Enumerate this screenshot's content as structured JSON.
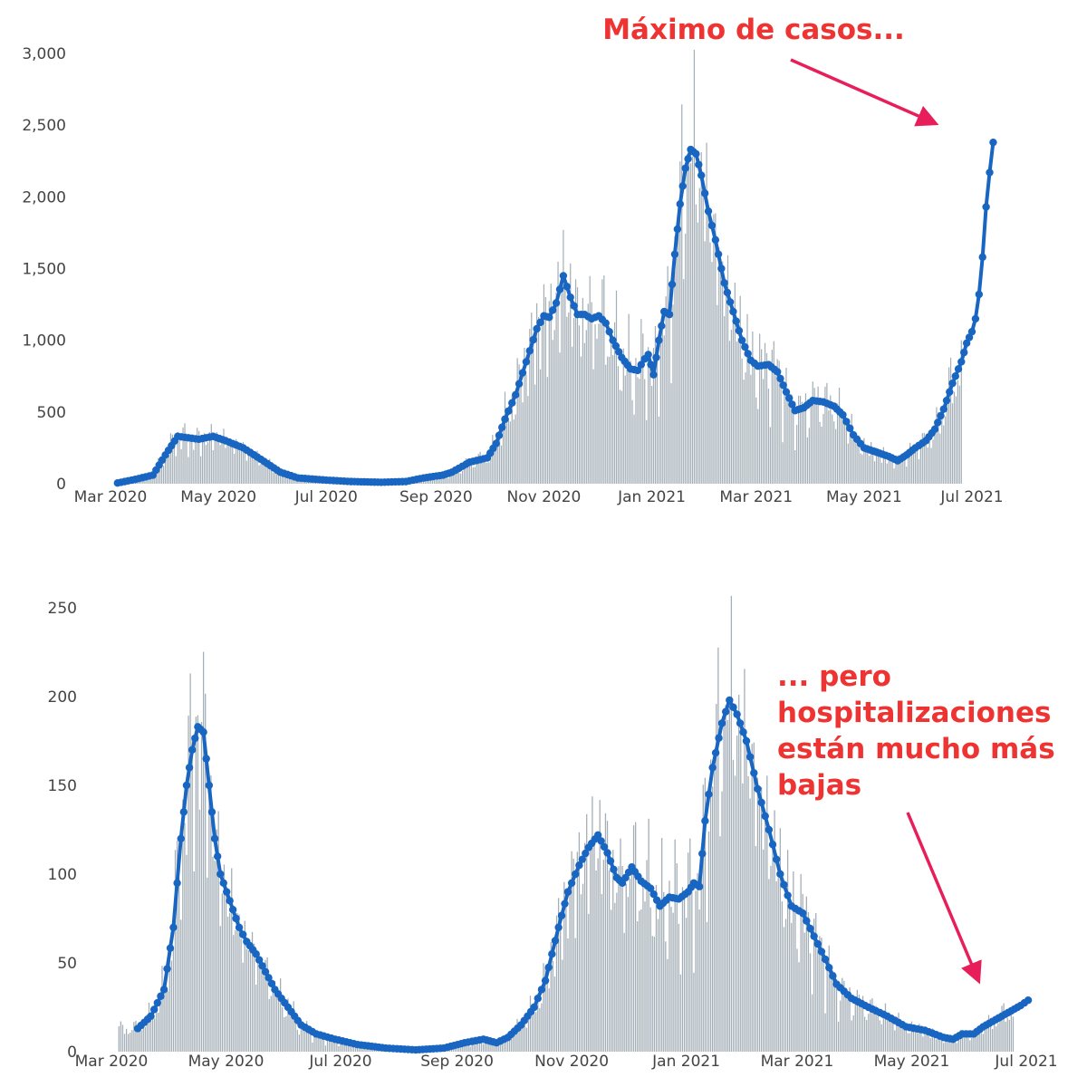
{
  "colors": {
    "bar": "#a3aeb6",
    "line": "#1866c2",
    "annotation": "#ee3333",
    "arrow": "#e81e5a",
    "tick": "#444444"
  },
  "chart_data": [
    {
      "type": "bar",
      "overlay": "line",
      "title": "",
      "xlabel": "",
      "ylabel": "",
      "ylim": [
        0,
        3000
      ],
      "x_range": [
        "2020-03-01",
        "2021-07-01"
      ],
      "x_ticks": [
        {
          "date": "2020-03-01",
          "label": "Mar 2020"
        },
        {
          "date": "2020-05-01",
          "label": "May 2020"
        },
        {
          "date": "2020-07-01",
          "label": "Jul 2020"
        },
        {
          "date": "2020-09-01",
          "label": "Sep 2020"
        },
        {
          "date": "2020-11-01",
          "label": "Nov 2020"
        },
        {
          "date": "2021-01-01",
          "label": "Jan 2021"
        },
        {
          "date": "2021-03-01",
          "label": "Mar 2021"
        },
        {
          "date": "2021-05-01",
          "label": "May 2021"
        },
        {
          "date": "2021-07-01",
          "label": "Jul 2021"
        }
      ],
      "y_ticks": [
        {
          "value": 0,
          "label": "0"
        },
        {
          "value": 500,
          "label": "500"
        },
        {
          "value": 1000,
          "label": "1,000"
        },
        {
          "value": 1500,
          "label": "1,500"
        },
        {
          "value": 2000,
          "label": "2,000"
        },
        {
          "value": 2500,
          "label": "2,500"
        },
        {
          "value": 3000,
          "label": "3,000"
        }
      ],
      "grid": false,
      "bar_series_start": "2020-03-05",
      "bar_series_end": "2021-06-25",
      "series": [
        {
          "type": "line",
          "points": [
            [
              "2020-03-05",
              5
            ],
            [
              "2020-03-15",
              30
            ],
            [
              "2020-03-25",
              60
            ],
            [
              "2020-04-01",
              200
            ],
            [
              "2020-04-08",
              330
            ],
            [
              "2020-04-20",
              310
            ],
            [
              "2020-04-28",
              330
            ],
            [
              "2020-05-05",
              300
            ],
            [
              "2020-05-15",
              250
            ],
            [
              "2020-05-25",
              170
            ],
            [
              "2020-06-05",
              80
            ],
            [
              "2020-06-15",
              40
            ],
            [
              "2020-07-01",
              25
            ],
            [
              "2020-07-15",
              15
            ],
            [
              "2020-08-01",
              10
            ],
            [
              "2020-08-15",
              15
            ],
            [
              "2020-08-25",
              40
            ],
            [
              "2020-09-05",
              60
            ],
            [
              "2020-09-10",
              80
            ],
            [
              "2020-09-20",
              150
            ],
            [
              "2020-09-30",
              180
            ],
            [
              "2020-10-05",
              280
            ],
            [
              "2020-10-10",
              450
            ],
            [
              "2020-10-16",
              620
            ],
            [
              "2020-10-22",
              850
            ],
            [
              "2020-10-28",
              1080
            ],
            [
              "2020-11-01",
              1170
            ],
            [
              "2020-11-04",
              1160
            ],
            [
              "2020-11-08",
              1260
            ],
            [
              "2020-11-12",
              1450
            ],
            [
              "2020-11-16",
              1300
            ],
            [
              "2020-11-20",
              1180
            ],
            [
              "2020-11-24",
              1180
            ],
            [
              "2020-11-28",
              1150
            ],
            [
              "2020-12-02",
              1170
            ],
            [
              "2020-12-06",
              1120
            ],
            [
              "2020-12-10",
              1000
            ],
            [
              "2020-12-15",
              880
            ],
            [
              "2020-12-20",
              800
            ],
            [
              "2020-12-24",
              790
            ],
            [
              "2020-12-28",
              870
            ],
            [
              "2020-12-30",
              900
            ],
            [
              "2021-01-02",
              760
            ],
            [
              "2021-01-05",
              1000
            ],
            [
              "2021-01-08",
              1200
            ],
            [
              "2021-01-11",
              1180
            ],
            [
              "2021-01-14",
              1600
            ],
            [
              "2021-01-17",
              1950
            ],
            [
              "2021-01-20",
              2200
            ],
            [
              "2021-01-23",
              2330
            ],
            [
              "2021-01-26",
              2300
            ],
            [
              "2021-01-29",
              2150
            ],
            [
              "2021-02-02",
              1900
            ],
            [
              "2021-02-06",
              1700
            ],
            [
              "2021-02-11",
              1400
            ],
            [
              "2021-02-16",
              1200
            ],
            [
              "2021-02-21",
              1000
            ],
            [
              "2021-02-26",
              860
            ],
            [
              "2021-03-02",
              820
            ],
            [
              "2021-03-08",
              830
            ],
            [
              "2021-03-13",
              780
            ],
            [
              "2021-03-18",
              640
            ],
            [
              "2021-03-23",
              510
            ],
            [
              "2021-03-28",
              530
            ],
            [
              "2021-04-02",
              580
            ],
            [
              "2021-04-08",
              570
            ],
            [
              "2021-04-14",
              540
            ],
            [
              "2021-04-19",
              480
            ],
            [
              "2021-04-25",
              340
            ],
            [
              "2021-05-01",
              250
            ],
            [
              "2021-05-08",
              220
            ],
            [
              "2021-05-15",
              190
            ],
            [
              "2021-05-20",
              160
            ],
            [
              "2021-05-25",
              200
            ],
            [
              "2021-05-30",
              250
            ],
            [
              "2021-06-05",
              300
            ],
            [
              "2021-06-10",
              380
            ],
            [
              "2021-06-15",
              520
            ],
            [
              "2021-06-20",
              700
            ],
            [
              "2021-06-25",
              850
            ],
            [
              "2021-06-28",
              980
            ],
            [
              "2021-07-01",
              1060
            ],
            [
              "2021-07-03",
              1150
            ],
            [
              "2021-07-05",
              1320
            ],
            [
              "2021-07-07",
              1580
            ],
            [
              "2021-07-09",
              1930
            ],
            [
              "2021-07-11",
              2170
            ],
            [
              "2021-07-13",
              2380
            ]
          ]
        }
      ],
      "annotation": "Máximo de casos..."
    },
    {
      "type": "bar",
      "overlay": "line",
      "title": "",
      "xlabel": "",
      "ylabel": "",
      "ylim": [
        0,
        250
      ],
      "x_range": [
        "2020-03-01",
        "2021-07-01"
      ],
      "x_ticks": [
        {
          "date": "2020-03-01",
          "label": "Mar 2020"
        },
        {
          "date": "2020-05-01",
          "label": "May 2020"
        },
        {
          "date": "2020-07-01",
          "label": "Jul 2020"
        },
        {
          "date": "2020-09-01",
          "label": "Sep 2020"
        },
        {
          "date": "2020-11-01",
          "label": "Nov 2020"
        },
        {
          "date": "2021-01-01",
          "label": "Jan 2021"
        },
        {
          "date": "2021-03-01",
          "label": "Mar 2021"
        },
        {
          "date": "2021-05-01",
          "label": "May 2021"
        },
        {
          "date": "2021-07-01",
          "label": "Jul 2021"
        }
      ],
      "y_ticks": [
        {
          "value": 0,
          "label": "0"
        },
        {
          "value": 50,
          "label": "50"
        },
        {
          "value": 100,
          "label": "100"
        },
        {
          "value": 150,
          "label": "150"
        },
        {
          "value": 200,
          "label": "200"
        },
        {
          "value": 250,
          "label": "250"
        }
      ],
      "grid": false,
      "bar_series_start": "2020-03-05",
      "bar_series_end": "2021-06-24",
      "series": [
        {
          "type": "line",
          "points": [
            [
              "2020-03-15",
              13
            ],
            [
              "2020-03-22",
              20
            ],
            [
              "2020-03-29",
              35
            ],
            [
              "2020-04-03",
              70
            ],
            [
              "2020-04-07",
              120
            ],
            [
              "2020-04-10",
              150
            ],
            [
              "2020-04-13",
              170
            ],
            [
              "2020-04-16",
              183
            ],
            [
              "2020-04-19",
              180
            ],
            [
              "2020-04-22",
              150
            ],
            [
              "2020-04-25",
              120
            ],
            [
              "2020-04-28",
              100
            ],
            [
              "2020-05-03",
              85
            ],
            [
              "2020-05-08",
              70
            ],
            [
              "2020-05-12",
              62
            ],
            [
              "2020-05-17",
              55
            ],
            [
              "2020-05-22",
              45
            ],
            [
              "2020-05-27",
              35
            ],
            [
              "2020-06-03",
              25
            ],
            [
              "2020-06-10",
              15
            ],
            [
              "2020-06-18",
              10
            ],
            [
              "2020-06-28",
              7
            ],
            [
              "2020-07-10",
              4
            ],
            [
              "2020-07-25",
              2
            ],
            [
              "2020-08-10",
              1
            ],
            [
              "2020-08-25",
              2
            ],
            [
              "2020-09-05",
              5
            ],
            [
              "2020-09-15",
              7
            ],
            [
              "2020-09-22",
              5
            ],
            [
              "2020-09-28",
              8
            ],
            [
              "2020-10-05",
              15
            ],
            [
              "2020-10-12",
              25
            ],
            [
              "2020-10-18",
              40
            ],
            [
              "2020-10-25",
              70
            ],
            [
              "2020-10-30",
              90
            ],
            [
              "2020-11-05",
              105
            ],
            [
              "2020-11-10",
              115
            ],
            [
              "2020-11-15",
              122
            ],
            [
              "2020-11-20",
              112
            ],
            [
              "2020-11-25",
              98
            ],
            [
              "2020-11-28",
              95
            ],
            [
              "2020-12-03",
              104
            ],
            [
              "2020-12-08",
              96
            ],
            [
              "2020-12-13",
              92
            ],
            [
              "2020-12-18",
              82
            ],
            [
              "2020-12-23",
              87
            ],
            [
              "2020-12-28",
              86
            ],
            [
              "2021-01-02",
              90
            ],
            [
              "2021-01-05",
              95
            ],
            [
              "2021-01-08",
              93
            ],
            [
              "2021-01-11",
              130
            ],
            [
              "2021-01-15",
              160
            ],
            [
              "2021-01-20",
              185
            ],
            [
              "2021-01-24",
              198
            ],
            [
              "2021-01-28",
              190
            ],
            [
              "2021-02-02",
              175
            ],
            [
              "2021-02-08",
              148
            ],
            [
              "2021-02-14",
              125
            ],
            [
              "2021-02-20",
              100
            ],
            [
              "2021-02-26",
              82
            ],
            [
              "2021-03-04",
              78
            ],
            [
              "2021-03-10",
              65
            ],
            [
              "2021-03-16",
              52
            ],
            [
              "2021-03-22",
              38
            ],
            [
              "2021-03-30",
              30
            ],
            [
              "2021-04-08",
              25
            ],
            [
              "2021-04-18",
              20
            ],
            [
              "2021-04-28",
              14
            ],
            [
              "2021-05-08",
              12
            ],
            [
              "2021-05-18",
              8
            ],
            [
              "2021-05-23",
              7
            ],
            [
              "2021-05-28",
              10
            ],
            [
              "2021-06-03",
              10
            ],
            [
              "2021-06-08",
              14
            ],
            [
              "2021-06-13",
              17
            ],
            [
              "2021-06-18",
              20
            ],
            [
              "2021-06-23",
              23
            ],
            [
              "2021-06-28",
              26
            ],
            [
              "2021-07-02",
              29
            ]
          ]
        }
      ],
      "annotation": [
        "... pero",
        "hospitalizaciones",
        "están mucho más",
        "bajas"
      ]
    }
  ]
}
